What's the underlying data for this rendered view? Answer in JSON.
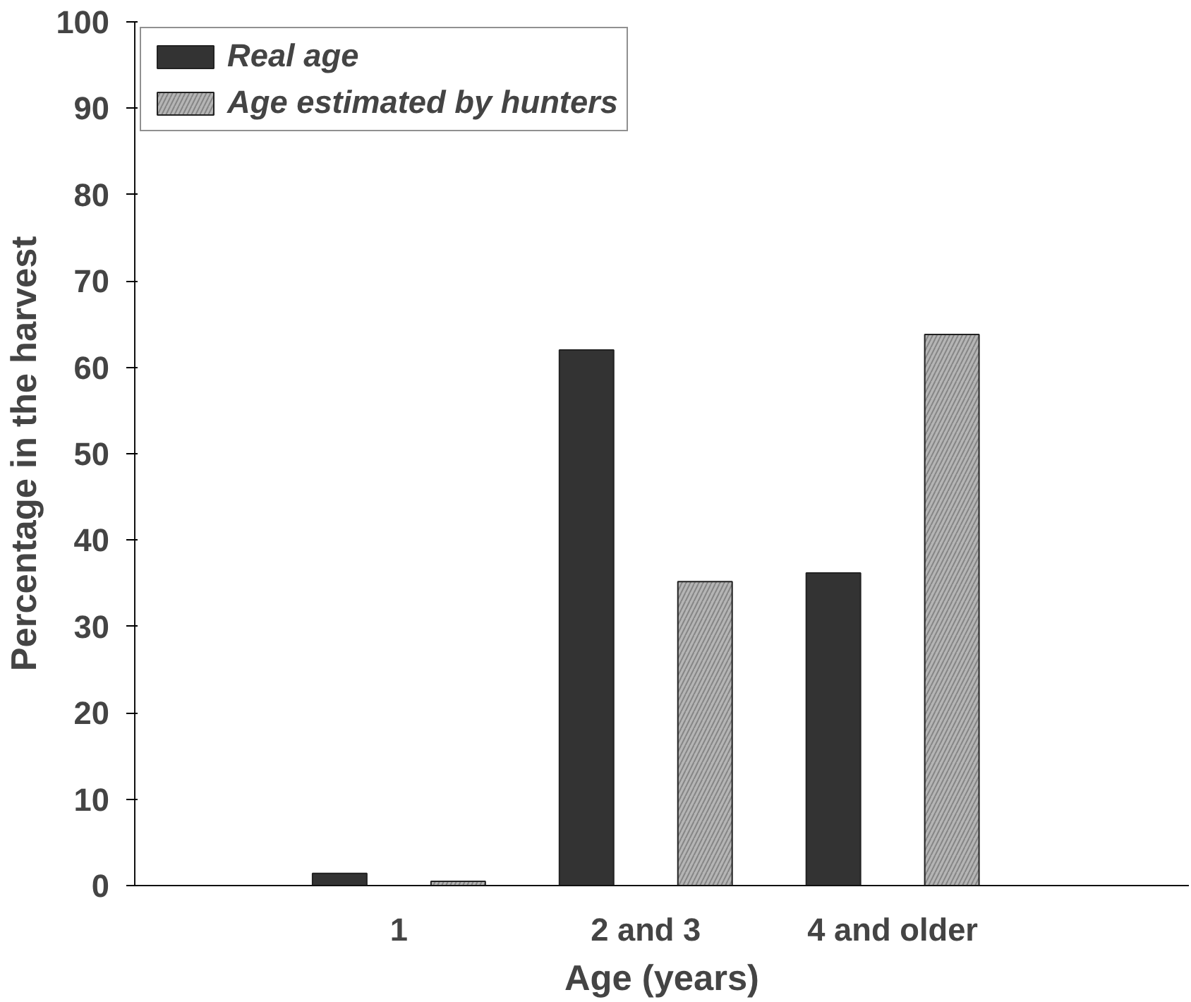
{
  "chart_data": {
    "type": "bar",
    "xlabel": "Age (years)",
    "ylabel": "Percentage in the harvest",
    "categories": [
      "1",
      "2 and 3",
      "4 and older"
    ],
    "series": [
      {
        "name": "Real age",
        "color": "#333333",
        "values": [
          1.4,
          62,
          36.2
        ]
      },
      {
        "name": "Age estimated by hunters",
        "color": "#b5b5b5",
        "values": [
          0.5,
          35.2,
          63.8
        ]
      }
    ],
    "ylim": [
      0,
      100
    ],
    "yticks": [
      0,
      10,
      20,
      30,
      40,
      50,
      60,
      70,
      80,
      90,
      100
    ],
    "grid": false,
    "legend": "top left"
  }
}
